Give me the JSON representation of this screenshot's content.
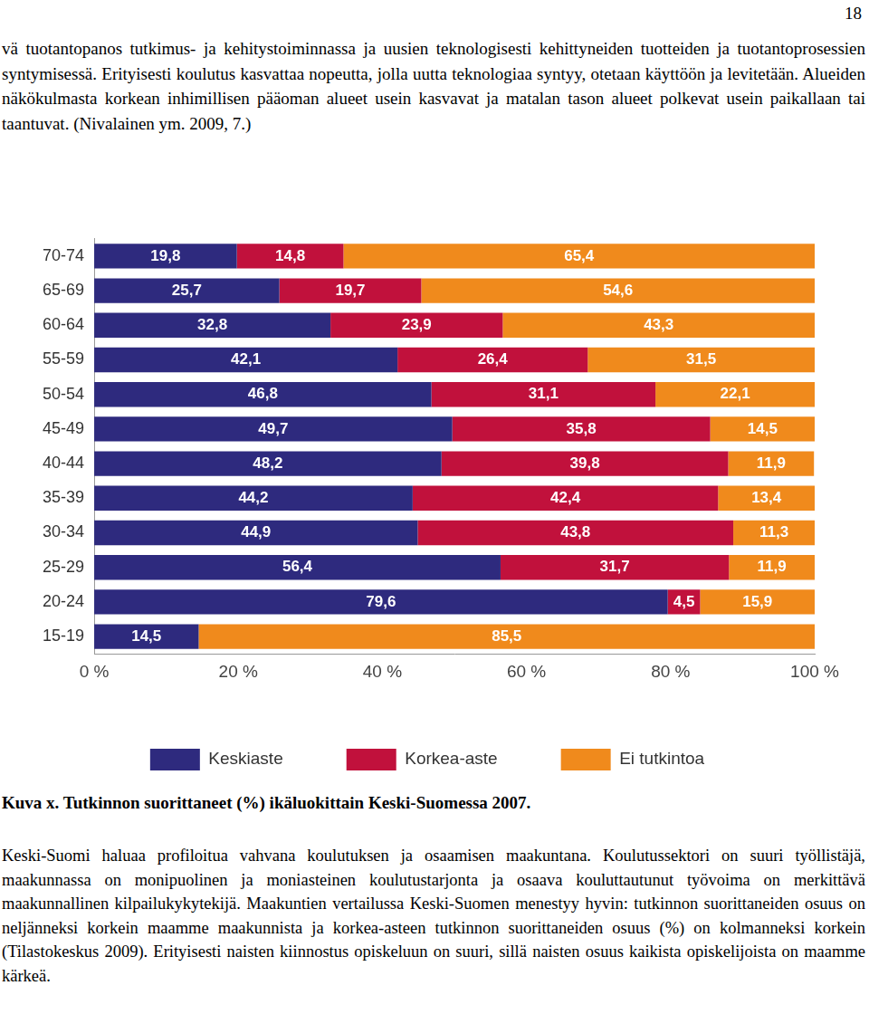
{
  "page_number": "18",
  "text_above": "vä tuotantopanos tutkimus- ja kehitystoiminnassa ja uusien teknologisesti kehittyneiden tuotteiden ja tuotantoprosessien syntymisessä. Erityisesti koulutus kasvattaa nopeutta, jolla uutta teknologiaa syntyy, otetaan käyttöön ja levitetään. Alueiden näkökulmasta korkean inhimillisen pääoman alueet usein kasvavat ja matalan tason alueet polkevat usein paikallaan tai taantuvat. (Nivalainen ym. 2009, 7.)",
  "chart_data": {
    "type": "bar",
    "orientation": "horizontal",
    "stacked": true,
    "data_labels": true,
    "grid": false,
    "legend": "bottom",
    "categories": [
      "70-74",
      "65-69",
      "60-64",
      "55-59",
      "50-54",
      "45-49",
      "40-44",
      "35-39",
      "30-34",
      "25-29",
      "20-24",
      "15-19"
    ],
    "series": [
      {
        "name": "Keskiaste",
        "color": "#2e2a7e",
        "values": [
          19.8,
          25.7,
          32.8,
          42.1,
          46.8,
          49.7,
          48.2,
          44.2,
          44.9,
          56.4,
          79.6,
          14.5
        ],
        "value_labels": [
          "19,8",
          "25,7",
          "32,8",
          "42,1",
          "46,8",
          "49,7",
          "48,2",
          "44,2",
          "44,9",
          "56,4",
          "79,6",
          "14,5"
        ]
      },
      {
        "name": "Korkea-aste",
        "color": "#c1113c",
        "values": [
          14.8,
          19.7,
          23.9,
          26.4,
          31.1,
          35.8,
          39.8,
          42.4,
          43.8,
          31.7,
          4.5,
          null
        ],
        "value_labels": [
          "14,8",
          "19,7",
          "23,9",
          "26,4",
          "31,1",
          "35,8",
          "39,8",
          "42,4",
          "43,8",
          "31,7",
          "4,5",
          null
        ]
      },
      {
        "name": "Ei tutkintoa",
        "color": "#f08a1c",
        "values": [
          65.4,
          54.6,
          43.3,
          31.5,
          22.1,
          14.5,
          11.9,
          13.4,
          11.3,
          11.9,
          15.9,
          85.5
        ],
        "value_labels": [
          "65,4",
          "54,6",
          "43,3",
          "31,5",
          "22,1",
          "14,5",
          "11,9",
          "13,4",
          "11,3",
          "11,9",
          "15,9",
          "85,5"
        ]
      }
    ],
    "xlim": [
      0,
      100
    ],
    "xticks": [
      {
        "value": 0,
        "label": "0 %"
      },
      {
        "value": 20,
        "label": "20 %"
      },
      {
        "value": 40,
        "label": "40 %"
      },
      {
        "value": 60,
        "label": "60 %"
      },
      {
        "value": 80,
        "label": "80 %"
      },
      {
        "value": 100,
        "label": "100 %"
      }
    ]
  },
  "caption": "Kuva x. Tutkinnon suorittaneet (%) ikäluokittain Keski-Suomessa 2007.",
  "text_below": "Keski-Suomi haluaa profiloitua vahvana koulutuksen ja osaamisen maakuntana. Koulutussektori on suuri työllistäjä, maakunnassa on monipuolinen ja moniasteinen koulutustarjonta ja osaava kouluttautunut työvoima on merkittävä maakunnallinen kilpailukykytekijä. Maakuntien vertailussa Keski-Suomen menestyy hyvin: tutkinnon suorittaneiden osuus on neljänneksi korkein maamme maakunnista ja korkea-asteen tutkinnon suorittaneiden osuus (%) on kolmanneksi korkein (Tilastokeskus 2009). Erityisesti naisten kiinnostus opiskeluun on suuri, sillä naisten osuus kaikista opiskelijoista on maamme kärkeä."
}
